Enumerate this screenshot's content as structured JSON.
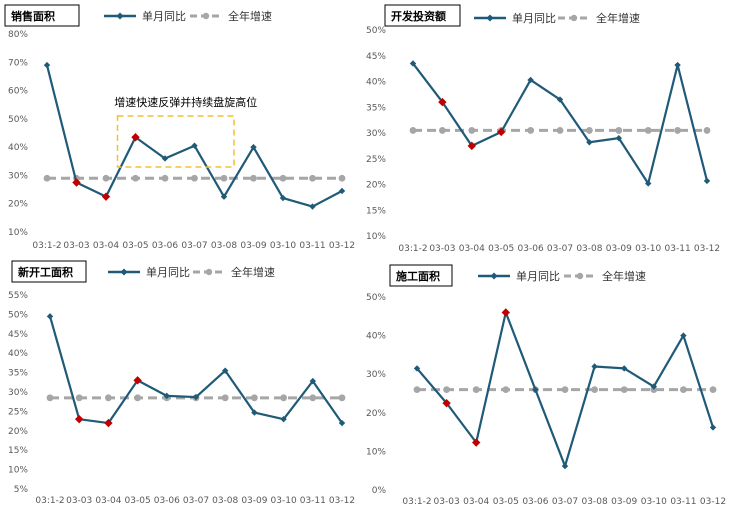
{
  "legend": {
    "monthly_label": "单月同比",
    "annual_label": "全年增速"
  },
  "colors": {
    "monthly_line": "#1f5a78",
    "monthly_marker": "#1f5a78",
    "highlight_marker": "#c00000",
    "annual_line": "#a6a6a6",
    "annotation_box": "#f2c12e"
  },
  "chart_data": [
    {
      "type": "line",
      "title": "销售面积",
      "categories": [
        "03:1-2",
        "03-03",
        "03-04",
        "03-05",
        "03-06",
        "03-07",
        "03-08",
        "03-09",
        "03-10",
        "03-11",
        "03-12"
      ],
      "series": [
        {
          "name": "单月同比",
          "values": [
            69,
            27.5,
            22.5,
            43.5,
            36,
            40.5,
            22.5,
            40,
            22,
            19,
            24.5
          ]
        },
        {
          "name": "全年增速",
          "values": [
            29,
            29,
            29,
            29,
            29,
            29,
            29,
            29,
            29,
            29,
            29
          ]
        }
      ],
      "highlight_indices": [
        1,
        2,
        3
      ],
      "yticks": [
        "10%",
        "20%",
        "30%",
        "40%",
        "50%",
        "60%",
        "70%",
        "80%"
      ],
      "ylim": [
        10,
        80
      ],
      "annotation": {
        "text": "增速快速反弹并持续盘旋高位",
        "x_from": 3,
        "x_to": 6,
        "y_from": 33,
        "y_to": 51
      }
    },
    {
      "type": "line",
      "title": "开发投资额",
      "categories": [
        "03:1-2",
        "03-03",
        "03-04",
        "03-05",
        "03-06",
        "03-07",
        "03-08",
        "03-09",
        "03-10",
        "03-11",
        "03-12"
      ],
      "series": [
        {
          "name": "单月同比",
          "values": [
            43.5,
            36,
            27.5,
            30.2,
            40.3,
            36.5,
            28.2,
            29,
            20.2,
            43.2,
            20.7
          ]
        },
        {
          "name": "全年增速",
          "values": [
            30.5,
            30.5,
            30.5,
            30.5,
            30.5,
            30.5,
            30.5,
            30.5,
            30.5,
            30.5,
            30.5
          ]
        }
      ],
      "highlight_indices": [
        1,
        2,
        3
      ],
      "yticks": [
        "10%",
        "15%",
        "20%",
        "25%",
        "30%",
        "35%",
        "40%",
        "45%",
        "50%"
      ],
      "ylim": [
        10,
        50
      ]
    },
    {
      "type": "line",
      "title": "新开工面积",
      "categories": [
        "03:1-2",
        "03-03",
        "03-04",
        "03-05",
        "03-06",
        "03-07",
        "03-08",
        "03-09",
        "03-10",
        "03-11",
        "03-12"
      ],
      "series": [
        {
          "name": "单月同比",
          "values": [
            49.5,
            23,
            22,
            33,
            29,
            28.7,
            35.5,
            24.7,
            23,
            32.8,
            22
          ]
        },
        {
          "name": "全年增速",
          "values": [
            28.5,
            28.5,
            28.5,
            28.5,
            28.5,
            28.5,
            28.5,
            28.5,
            28.5,
            28.5,
            28.5
          ]
        }
      ],
      "highlight_indices": [
        1,
        2,
        3
      ],
      "yticks": [
        "5%",
        "10%",
        "15%",
        "20%",
        "25%",
        "30%",
        "35%",
        "40%",
        "45%",
        "50%",
        "55%"
      ],
      "ylim": [
        5,
        55
      ]
    },
    {
      "type": "line",
      "title": "施工面积",
      "categories": [
        "03:1-2",
        "03-03",
        "03-04",
        "03-05",
        "03-06",
        "03-07",
        "03-08",
        "03-09",
        "03-10",
        "03-11",
        "03-12"
      ],
      "series": [
        {
          "name": "单月同比",
          "values": [
            31.5,
            22.5,
            12.3,
            46,
            26,
            6.2,
            32,
            31.5,
            26.8,
            40,
            16.2
          ]
        },
        {
          "name": "全年增速",
          "values": [
            26,
            26,
            26,
            26,
            26,
            26,
            26,
            26,
            26,
            26,
            26
          ]
        }
      ],
      "highlight_indices": [
        1,
        2,
        3
      ],
      "yticks": [
        "0%",
        "10%",
        "20%",
        "30%",
        "40%",
        "50%"
      ],
      "ylim": [
        0,
        50
      ]
    }
  ]
}
